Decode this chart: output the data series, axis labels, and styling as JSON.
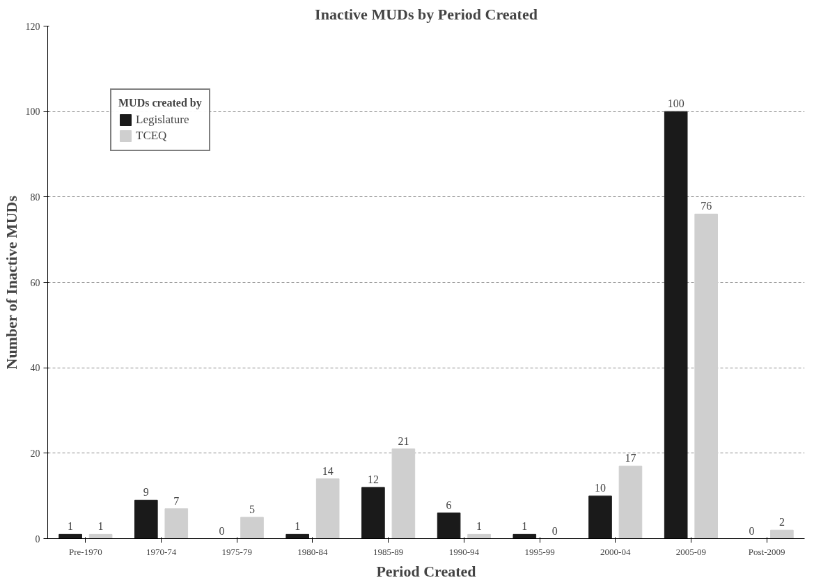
{
  "chart_data": {
    "type": "bar",
    "title": "Inactive MUDs by Period Created",
    "xlabel": "Period Created",
    "ylabel": "Number of Inactive MUDs",
    "legend_title": "MUDs created by",
    "categories": [
      "Pre-1970",
      "1970-74",
      "1975-79",
      "1980-84",
      "1985-89",
      "1990-94",
      "1995-99",
      "2000-04",
      "2005-09",
      "Post-2009"
    ],
    "series": [
      {
        "name": "Legislature",
        "color": "#1a1a1a",
        "values": [
          1,
          9,
          0,
          1,
          12,
          6,
          1,
          10,
          100,
          0
        ]
      },
      {
        "name": "TCEQ",
        "color": "#cfcfcf",
        "values": [
          1,
          7,
          5,
          14,
          21,
          1,
          0,
          17,
          76,
          2
        ]
      }
    ],
    "ylim": [
      0,
      120
    ],
    "yticks": [
      0,
      20,
      40,
      60,
      80,
      100,
      120
    ],
    "grid": "y",
    "legend": "top left",
    "data_labels": true
  }
}
